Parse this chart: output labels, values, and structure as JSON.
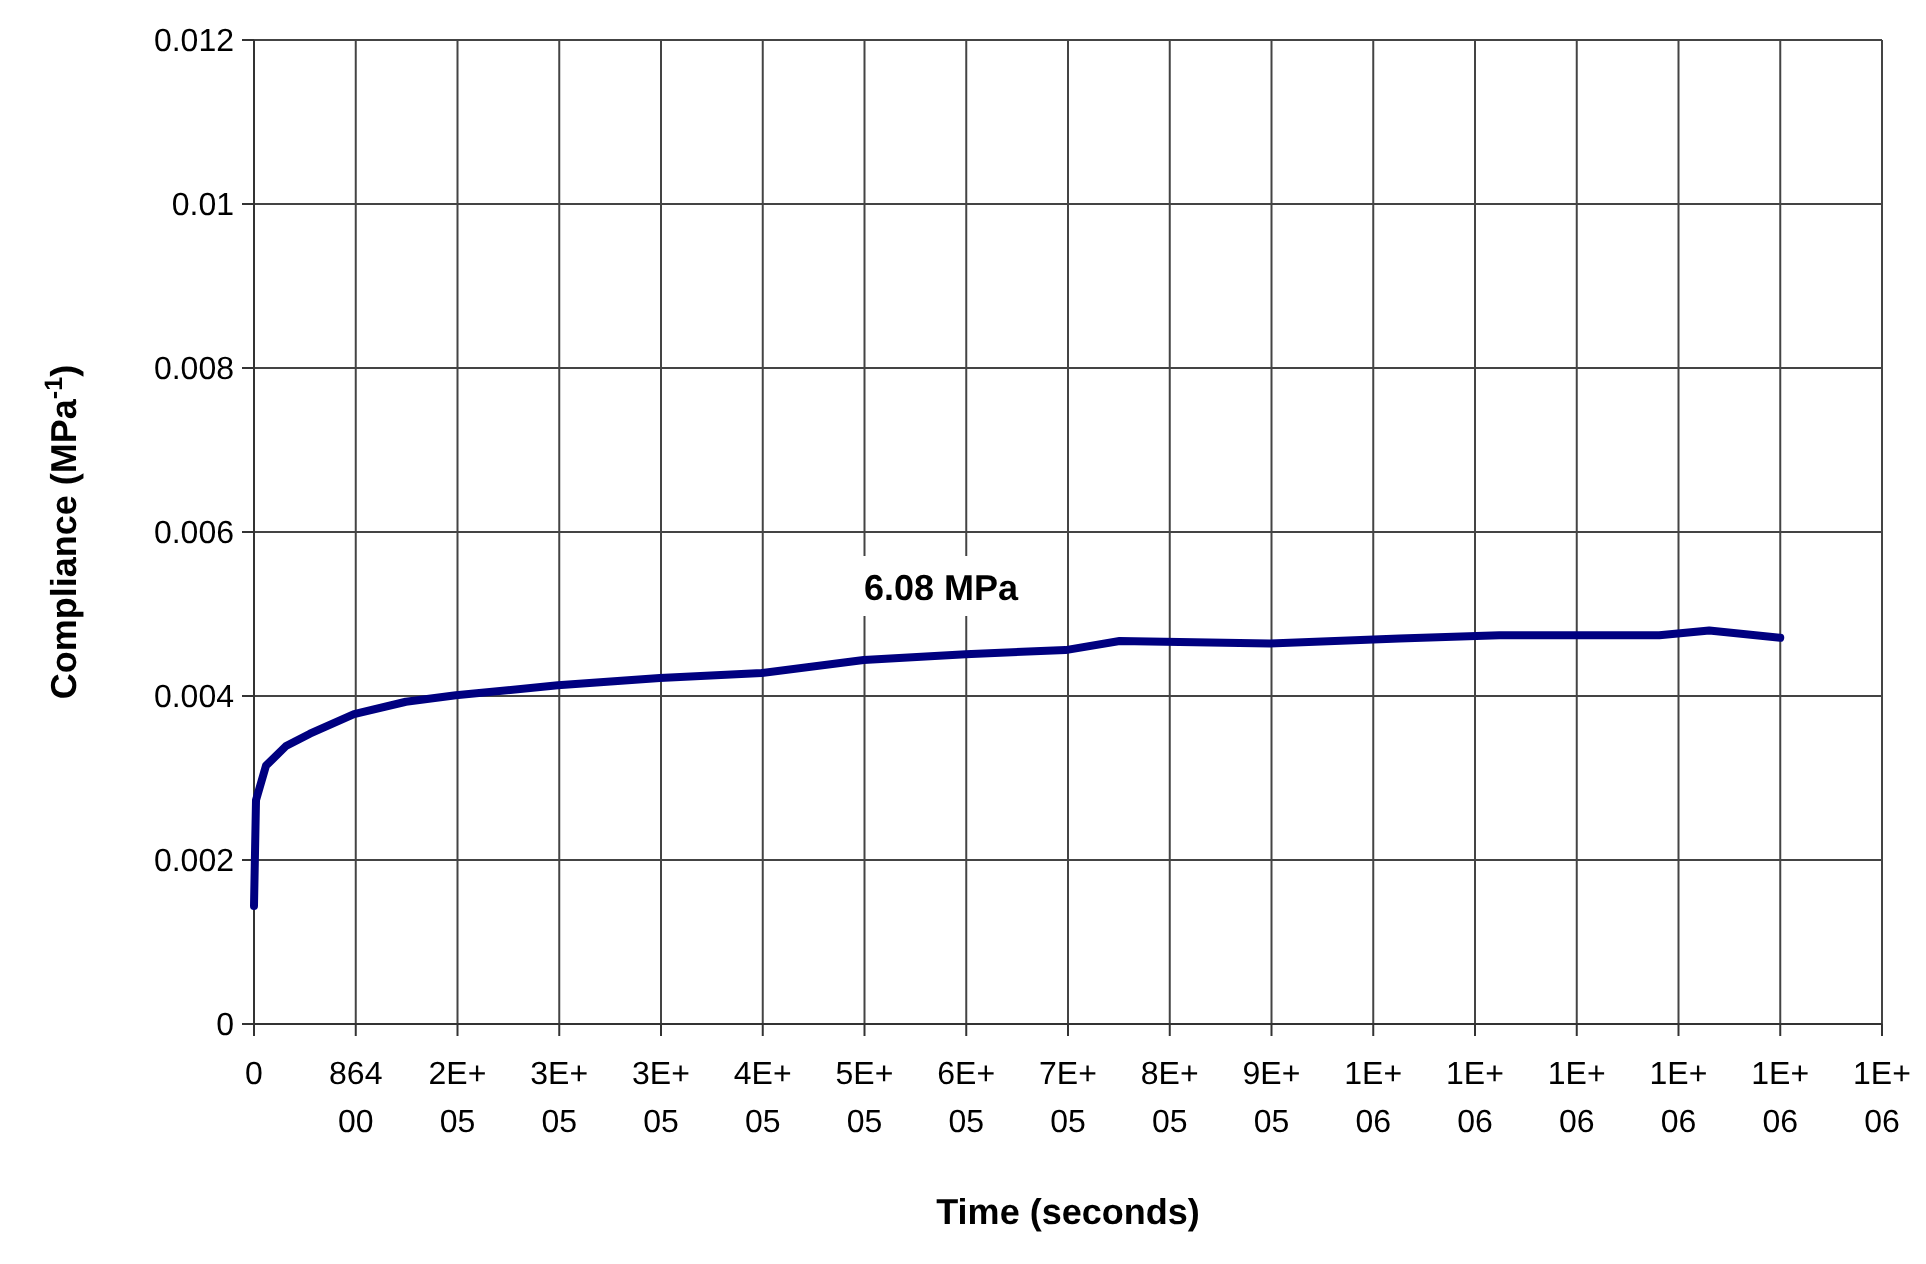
{
  "chart_data": {
    "type": "line",
    "xlabel": "Time (seconds)",
    "ylabel": "Compliance (MPa$^{-1}$)",
    "annotations": [
      "6.08 MPa"
    ],
    "x": [
      0,
      1700,
      10200,
      27200,
      47500,
      84900,
      129000,
      171400,
      258000,
      344600,
      431100,
      517700,
      604300,
      689100,
      735000,
      862300,
      972600,
      1057500,
      1193300,
      1235700,
      1296000
    ],
    "series": [
      {
        "color": "#000080",
        "values": [
          0.00144,
          0.00273,
          0.00315,
          0.00339,
          0.00354,
          0.00378,
          0.00393,
          0.00401,
          0.00413,
          0.00422,
          0.00428,
          0.00444,
          0.00451,
          0.00456,
          0.00467,
          0.00464,
          0.0047,
          0.00474,
          0.00474,
          0.0048,
          0.00471
        ]
      }
    ],
    "xlim": [
      0,
      1382400
    ],
    "xticks": [
      0,
      86400,
      {
        "value": 172800,
        "label": "2E+05"
      },
      {
        "value": 259200,
        "label": "3E+05"
      },
      {
        "value": 345600,
        "label": "3E+05"
      },
      {
        "value": 432000,
        "label": "4E+05"
      },
      {
        "value": 518400,
        "label": "5E+05"
      },
      {
        "value": 604800,
        "label": "6E+05"
      },
      {
        "value": 691200,
        "label": "7E+05"
      },
      {
        "value": 777600,
        "label": "8E+05"
      },
      {
        "value": 864000,
        "label": "9E+05"
      },
      {
        "value": 950400,
        "label": "1E+06"
      },
      {
        "value": 1036800,
        "label": "1E+06"
      },
      {
        "value": 1123200,
        "label": "1E+06"
      },
      {
        "value": 1209600,
        "label": "1E+06"
      },
      {
        "value": 1296000,
        "label": "1E+06"
      },
      {
        "value": 1382400,
        "label": "1E+06"
      }
    ],
    "ylim": [
      0,
      0.012
    ],
    "yticks": [
      0,
      0.002,
      0.004,
      0.006,
      0.008,
      0.01,
      0.012
    ],
    "grid": true,
    "marker": "none",
    "line_style": "solid"
  }
}
